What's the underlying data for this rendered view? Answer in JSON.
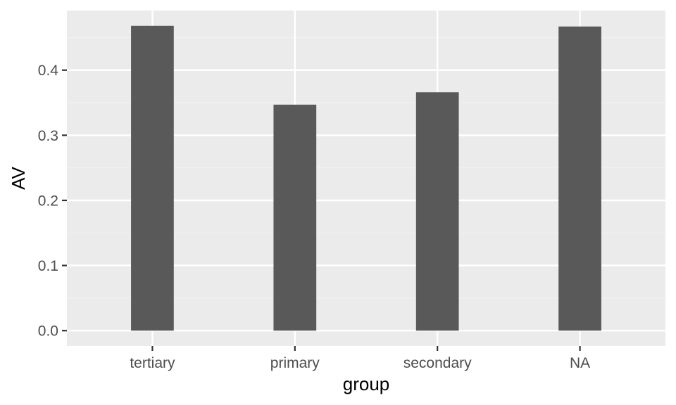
{
  "chart_data": {
    "type": "bar",
    "categories": [
      "tertiary",
      "primary",
      "secondary",
      "NA"
    ],
    "values": [
      0.468,
      0.347,
      0.366,
      0.467
    ],
    "title": "",
    "xlabel": "group",
    "ylabel": "AV",
    "ylim": [
      -0.0235,
      0.4915
    ],
    "yticks": [
      0.0,
      0.1,
      0.2,
      0.3,
      0.4
    ],
    "ytick_labels": [
      "0.0",
      "0.1",
      "0.2",
      "0.3",
      "0.4"
    ],
    "grid": true,
    "legend": "none",
    "colors": {
      "bar": "#595959",
      "panel": "#ebebeb",
      "grid_major": "#ffffff",
      "grid_minor": "#f2f2f2",
      "tick": "#333333",
      "tick_label": "#4d4d4d",
      "axis_title": "#000000"
    }
  }
}
